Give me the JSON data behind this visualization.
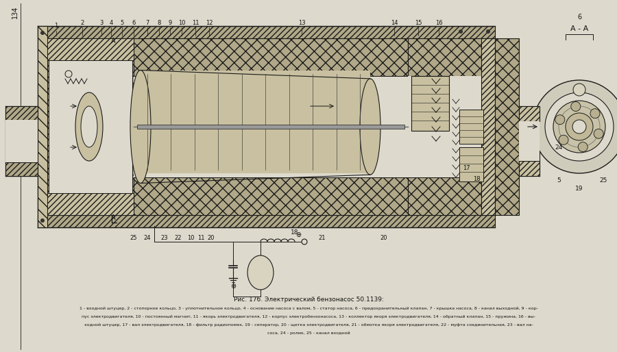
{
  "title": "Рис. 176. Электрический бензонасос 50.1139:",
  "caption_line1": "1 - входной штуцер, 2 - стопорное кольцо, 3 - уплотнительное кольцо, 4 - основание насоса с валом, 5 - статор насоса, 6 - предохранительный клапан, 7 - крышка насоса, 8 - канал выходной, 9 - кор-",
  "caption_line2": "пус электродвигателя, 10 - постоянный магнит, 11 - якорь электродвигателя, 12 - корпус электробензонасоса, 13 - коллектор якоря электродвигателя, 14 - обратный клапан, 15 - пружина, 16 - вы-",
  "caption_line3": "ходной штуцер, 17 - вал электродвигателя, 18 - фильтр радиопомех, 19 - сепаратор, 20 - щетка электродвигателя, 21 - обмотка якоря электродвигателя, 22 - муфта соединительная, 23 - вал на-",
  "caption_line4": "соса, 24 - ролик, 25 - канал входной",
  "bg_color": "#ddd9cc",
  "line_color": "#1a1a1a",
  "font_color": "#111111"
}
